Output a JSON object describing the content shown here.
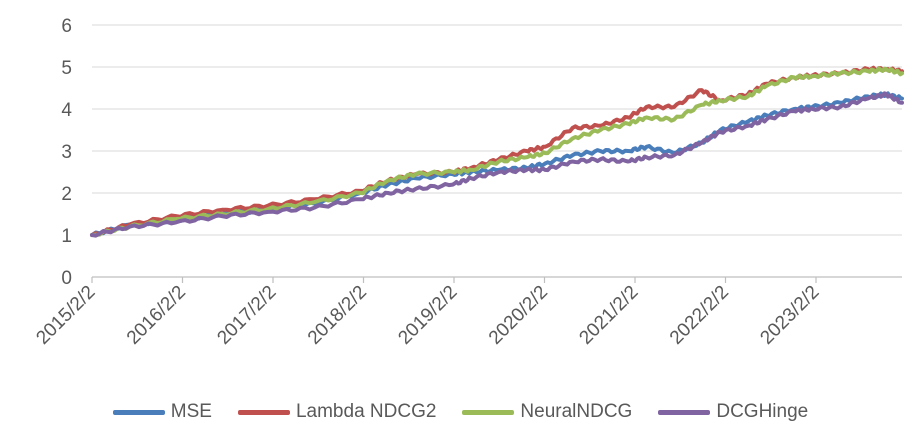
{
  "chart_data": {
    "type": "line",
    "title": "",
    "xlabel": "",
    "ylabel": "",
    "ylim": [
      0,
      6
    ],
    "y_ticks": [
      "0",
      "1",
      "2",
      "3",
      "4",
      "5",
      "6"
    ],
    "x_tick_labels": [
      "2015/2/2",
      "2016/2/2",
      "2017/2/2",
      "2018/2/2",
      "2019/2/2",
      "2020/2/2",
      "2021/2/2",
      "2022/2/2",
      "2023/2/2"
    ],
    "x": [
      2015.09,
      2015.5,
      2016.0,
      2016.5,
      2017.0,
      2017.5,
      2018.0,
      2018.3,
      2018.6,
      2019.0,
      2019.2,
      2019.5,
      2019.8,
      2020.0,
      2020.3,
      2020.6,
      2020.9,
      2021.1,
      2021.4,
      2021.7,
      2021.9,
      2022.2,
      2022.4,
      2022.7,
      2022.9,
      2023.2,
      2023.5,
      2023.7,
      2023.87
    ],
    "series": [
      {
        "name": "MSE",
        "color": "#4a7ebb",
        "values": [
          1.0,
          1.25,
          1.35,
          1.5,
          1.6,
          1.75,
          2.0,
          2.2,
          2.35,
          2.45,
          2.5,
          2.55,
          2.6,
          2.7,
          2.9,
          3.0,
          3.0,
          3.1,
          2.95,
          3.2,
          3.5,
          3.7,
          3.85,
          4.0,
          4.05,
          4.15,
          4.3,
          4.35,
          4.25
        ]
      },
      {
        "name": "Lambda NDCG2",
        "color": "#c0504d",
        "values": [
          1.0,
          1.25,
          1.45,
          1.6,
          1.7,
          1.85,
          2.05,
          2.3,
          2.45,
          2.5,
          2.6,
          2.8,
          3.0,
          3.1,
          3.55,
          3.6,
          3.8,
          4.05,
          4.05,
          4.45,
          4.2,
          4.35,
          4.6,
          4.75,
          4.8,
          4.85,
          4.95,
          4.95,
          4.9
        ]
      },
      {
        "name": "NeuralNDCG",
        "color": "#9bbb59",
        "values": [
          1.0,
          1.2,
          1.38,
          1.5,
          1.62,
          1.78,
          2.0,
          2.3,
          2.45,
          2.5,
          2.55,
          2.75,
          2.85,
          2.95,
          3.3,
          3.5,
          3.65,
          3.8,
          3.75,
          4.1,
          4.2,
          4.3,
          4.55,
          4.75,
          4.78,
          4.85,
          4.9,
          4.95,
          4.85
        ]
      },
      {
        "name": "DCGHinge",
        "color": "#8064a2",
        "values": [
          1.0,
          1.2,
          1.3,
          1.45,
          1.55,
          1.65,
          1.85,
          2.0,
          2.1,
          2.2,
          2.35,
          2.5,
          2.55,
          2.55,
          2.75,
          2.8,
          2.75,
          2.85,
          2.9,
          3.2,
          3.45,
          3.6,
          3.75,
          3.95,
          4.0,
          4.05,
          4.25,
          4.35,
          4.15
        ]
      }
    ]
  }
}
